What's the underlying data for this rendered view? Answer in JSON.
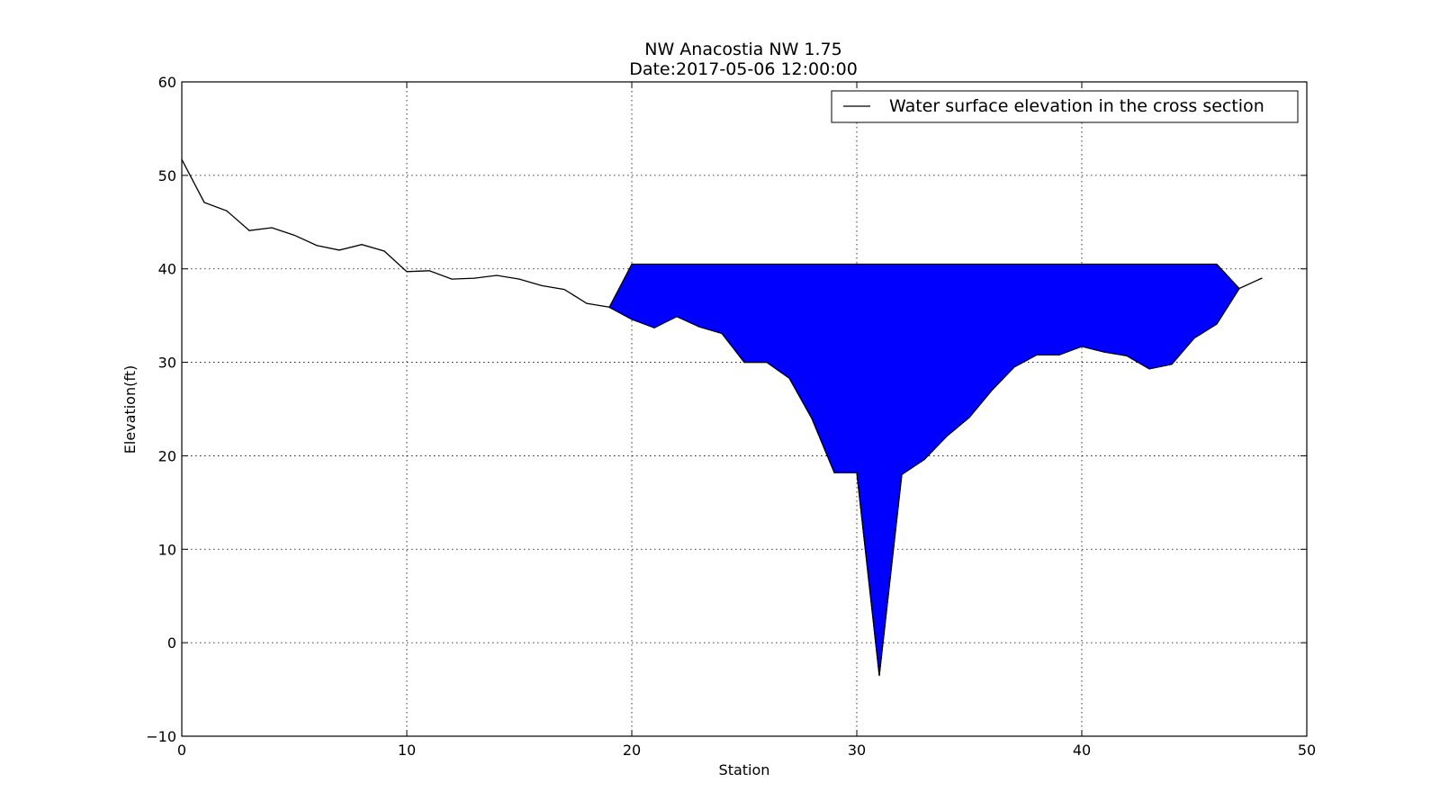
{
  "chart_data": {
    "type": "area",
    "title": "NW Anacostia NW 1.75",
    "subtitle": "Date:2017-05-06 12:00:00",
    "xlabel": "Station",
    "ylabel": "Elevation(ft)",
    "xlim": [
      0,
      50
    ],
    "ylim": [
      -10,
      60
    ],
    "xticks": [
      0,
      10,
      20,
      30,
      40,
      50
    ],
    "yticks": [
      -10,
      0,
      10,
      20,
      30,
      40,
      50,
      60
    ],
    "xtick_labels": [
      "0",
      "10",
      "20",
      "30",
      "40",
      "50"
    ],
    "ytick_labels": [
      "−10",
      "0",
      "10",
      "20",
      "30",
      "40",
      "50",
      "60"
    ],
    "grid": true,
    "legend_position": "top-right",
    "legend": [
      "Water surface elevation in the cross section"
    ],
    "water_fill_color": "#0000ff",
    "line_color": "#000000",
    "water_surface_elevation": 40.5,
    "series": [
      {
        "name": "Water surface elevation in the cross section",
        "x": [
          0,
          1,
          2,
          3,
          4,
          5,
          6,
          7,
          8,
          9,
          10,
          11,
          12,
          13,
          14,
          15,
          16,
          17,
          18,
          19,
          20,
          21,
          22,
          23,
          24,
          25,
          26,
          27,
          28,
          29,
          30,
          31,
          32,
          33,
          34,
          35,
          36,
          37,
          38,
          39,
          40,
          41,
          42,
          43,
          44,
          45,
          46,
          47,
          48
        ],
        "y": [
          51.7,
          47.1,
          46.2,
          44.1,
          44.4,
          43.6,
          42.5,
          42.0,
          42.6,
          41.9,
          39.7,
          39.8,
          38.9,
          39.0,
          39.3,
          38.9,
          38.2,
          37.8,
          36.3,
          35.9,
          34.6,
          33.7,
          34.9,
          33.8,
          33.1,
          30.0,
          30.0,
          28.3,
          24.0,
          18.2,
          18.2,
          -3.5,
          18.0,
          19.6,
          22.1,
          24.1,
          27.0,
          29.5,
          30.8,
          30.8,
          31.7,
          31.1,
          30.7,
          29.3,
          29.8,
          32.6,
          34.1,
          37.9,
          39.0
        ]
      }
    ],
    "water_fill": {
      "x": [
        19,
        20,
        21,
        22,
        23,
        24,
        25,
        26,
        27,
        28,
        29,
        30,
        31,
        32,
        33,
        34,
        35,
        36,
        37,
        38,
        39,
        40,
        41,
        42,
        43,
        44,
        45,
        46,
        47
      ],
      "y": [
        35.9,
        34.6,
        33.7,
        34.9,
        33.8,
        33.1,
        30.0,
        30.0,
        28.3,
        24.0,
        18.2,
        18.2,
        -3.5,
        18.0,
        19.6,
        22.1,
        24.1,
        27.0,
        29.5,
        30.8,
        30.8,
        31.7,
        31.1,
        30.7,
        29.3,
        29.8,
        32.6,
        34.1,
        37.9
      ],
      "top_left_x": 20,
      "top_right_x": 46
    }
  }
}
